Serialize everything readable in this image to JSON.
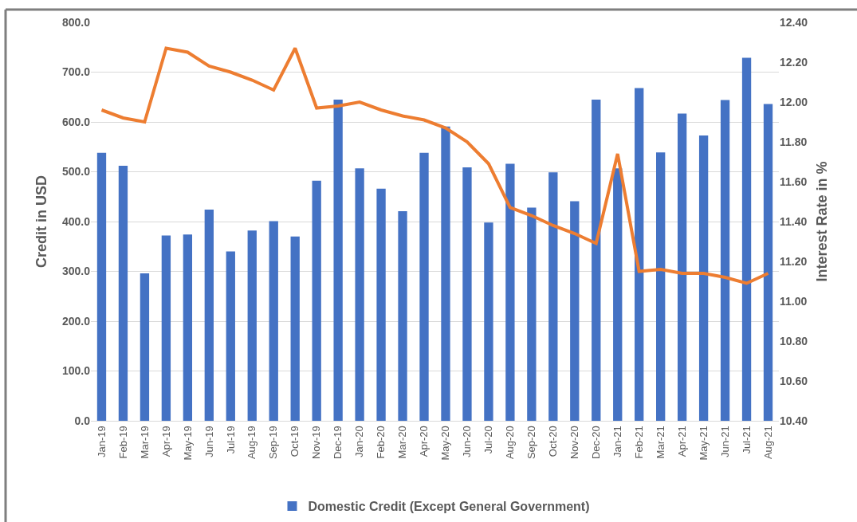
{
  "chart_data": {
    "type": "bar",
    "ylabel": "Credit in USD",
    "y2label": "Interest Rate in %",
    "categories": [
      "Jan-19",
      "Feb-19",
      "Mar-19",
      "Apr-19",
      "May-19",
      "Jun-19",
      "Jul-19",
      "Aug-19",
      "Sep-19",
      "Oct-19",
      "Nov-19",
      "Dec-19",
      "Jan-20",
      "Feb-20",
      "Mar-20",
      "Apr-20",
      "May-20",
      "Jun-20",
      "Jul-20",
      "Aug-20",
      "Sep-20",
      "Oct-20",
      "Nov-20",
      "Dec-20",
      "Jan-21",
      "Feb-21",
      "Mar-21",
      "Apr-21",
      "May-21",
      "Jun-21",
      "Jul-21",
      "Aug-21"
    ],
    "series": [
      {
        "name": "Domestic Credit (Except General Government)",
        "color": "#4472c4",
        "values": [
          538,
          512,
          296,
          372,
          374,
          424,
          340,
          382,
          401,
          370,
          482,
          645,
          507,
          466,
          421,
          538,
          591,
          509,
          398,
          516,
          428,
          499,
          441,
          645,
          507,
          668,
          539,
          617,
          573,
          644,
          729,
          636
        ]
      },
      {
        "type": "line",
        "axis": "y2",
        "color": "#ed7d31",
        "values": [
          11.96,
          11.92,
          11.9,
          12.27,
          12.25,
          12.18,
          12.15,
          12.11,
          12.06,
          12.27,
          11.97,
          11.98,
          12.0,
          11.96,
          11.93,
          11.91,
          11.87,
          11.8,
          11.69,
          11.47,
          11.43,
          11.38,
          11.34,
          11.29,
          11.74,
          11.15,
          11.16,
          11.14,
          11.14,
          11.12,
          11.09,
          11.14
        ]
      }
    ],
    "ylim": [
      0,
      800
    ],
    "yticks": [
      {
        "value": 0,
        "label": "0.0"
      },
      {
        "value": 100,
        "label": "100.0"
      },
      {
        "value": 200,
        "label": "200.0"
      },
      {
        "value": 300,
        "label": "300.0"
      },
      {
        "value": 400,
        "label": "400.0"
      },
      {
        "value": 500,
        "label": "500.0"
      },
      {
        "value": 600,
        "label": "600.0"
      },
      {
        "value": 700,
        "label": "700.0"
      },
      {
        "value": 800,
        "label": "800.0"
      }
    ],
    "y2lim": [
      10.4,
      12.4
    ],
    "y2ticks": [
      {
        "value": 10.4,
        "label": "10.40"
      },
      {
        "value": 10.6,
        "label": "10.60"
      },
      {
        "value": 10.8,
        "label": "10.80"
      },
      {
        "value": 11.0,
        "label": "11.00"
      },
      {
        "value": 11.2,
        "label": "11.20"
      },
      {
        "value": 11.4,
        "label": "11.40"
      },
      {
        "value": 11.6,
        "label": "11.60"
      },
      {
        "value": 11.8,
        "label": "11.80"
      },
      {
        "value": 12.0,
        "label": "12.00"
      },
      {
        "value": 12.2,
        "label": "12.20"
      },
      {
        "value": 12.4,
        "label": "12.40"
      }
    ],
    "grid": "y",
    "legend": "bottom",
    "line_style": "solid"
  }
}
